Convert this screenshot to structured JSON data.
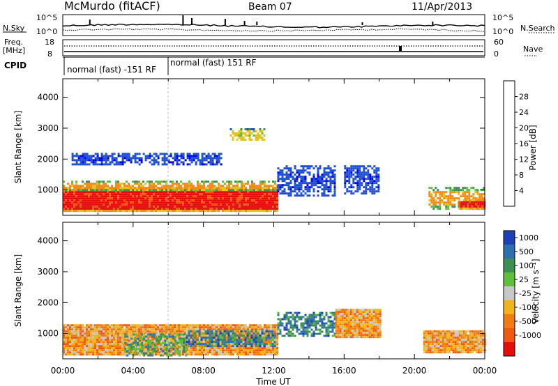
{
  "header": {
    "station": "McMurdo (fitACF)",
    "beam": "Beam 07",
    "date": "11/Apr/2013"
  },
  "summary_panels": {
    "noise": {
      "left_label": "N.Sky",
      "right_label": "N.Search",
      "left_ticks": [
        "10^5",
        "10^0"
      ],
      "right_ticks": [
        "10^5",
        "10^0"
      ]
    },
    "freq": {
      "left_label_1": "Freq.",
      "left_label_2": "[MHz]",
      "right_label": "Nave",
      "left_ticks": [
        "18",
        "8"
      ],
      "right_ticks": [
        "60",
        "0"
      ]
    },
    "cpid": {
      "label": "CPID",
      "segments": [
        {
          "start_hour": 0,
          "end_hour": 5.9,
          "text": "normal (fast) -151 RF"
        },
        {
          "start_hour": 5.9,
          "end_hour": 24,
          "text": "normal (fast) 151 RF"
        }
      ]
    }
  },
  "chart_data": [
    {
      "type": "heatmap",
      "panel": "power",
      "xlabel": "",
      "ylabel": "Slant Range [km]",
      "xlim": [
        0,
        24
      ],
      "ylim": [
        180,
        4600
      ],
      "yticks": [
        1000,
        2000,
        3000,
        4000
      ],
      "colorbar": {
        "label": "Power [dB]",
        "tick_labels": [
          "4",
          "8",
          "12",
          "16",
          "20",
          "24",
          "28"
        ],
        "colors": [
          "#0000e6",
          "#1e4fd0",
          "#3f8f55",
          "#5fbf3a",
          "#e6c21a",
          "#f08a19",
          "#ef5a12",
          "#e60d0d"
        ]
      },
      "regions": [
        {
          "x0": 0,
          "x1": 12.2,
          "y0": 300,
          "y1": 1100,
          "level": 7,
          "note": "main echo"
        },
        {
          "x0": 0,
          "x1": 12.2,
          "y0": 1000,
          "y1": 1300,
          "level": 5
        },
        {
          "x0": 12.2,
          "x1": 15.5,
          "y0": 800,
          "y1": 1800,
          "level": 1
        },
        {
          "x0": 16.0,
          "x1": 18.0,
          "y0": 900,
          "y1": 1800,
          "level": 1
        },
        {
          "x0": 20.8,
          "x1": 24,
          "y0": 400,
          "y1": 1100,
          "level": 5
        },
        {
          "x0": 22.5,
          "x1": 24,
          "y0": 400,
          "y1": 700,
          "level": 7
        },
        {
          "x0": 9.5,
          "x1": 11.5,
          "y0": 2600,
          "y1": 3000,
          "level": 4
        },
        {
          "x0": 0.5,
          "x1": 9.0,
          "y0": 1800,
          "y1": 2200,
          "level": 1
        }
      ]
    },
    {
      "type": "heatmap",
      "panel": "velocity",
      "xlabel": "Time UT",
      "ylabel": "Slant Range [km]",
      "xlim": [
        0,
        24
      ],
      "ylim": [
        180,
        4600
      ],
      "xticks": [
        0,
        4,
        8,
        12,
        16,
        20,
        24
      ],
      "xtick_labels": [
        "00:00",
        "04:00",
        "08:00",
        "12:00",
        "16:00",
        "20:00",
        "00:00"
      ],
      "yticks": [
        1000,
        2000,
        3000,
        4000
      ],
      "colorbar": {
        "label": "Velocity [m s⁻¹]",
        "tick_labels": [
          "1000",
          "500",
          "100",
          "25",
          "-25",
          "-100",
          "-500",
          "-1000"
        ],
        "colors": [
          "#1e3fb8",
          "#2e6fb0",
          "#3f8f55",
          "#5fbf3a",
          "#c8c8c8",
          "#f0b41e",
          "#f07c12",
          "#ef5a12",
          "#e60d0d"
        ]
      },
      "regions": [
        {
          "x0": 0,
          "x1": 12.2,
          "y0": 300,
          "y1": 1300,
          "level": 6,
          "note": "mostly negative"
        },
        {
          "x0": 3.5,
          "x1": 7.0,
          "y0": 300,
          "y1": 1000,
          "level": 3
        },
        {
          "x0": 7.0,
          "x1": 12.0,
          "y0": 600,
          "y1": 1100,
          "level": 2
        },
        {
          "x0": 12.2,
          "x1": 15.5,
          "y0": 900,
          "y1": 1700,
          "level": 2
        },
        {
          "x0": 15.5,
          "x1": 18.0,
          "y0": 900,
          "y1": 1800,
          "level": 6
        },
        {
          "x0": 20.5,
          "x1": 24,
          "y0": 400,
          "y1": 1100,
          "level": 6
        }
      ]
    }
  ]
}
